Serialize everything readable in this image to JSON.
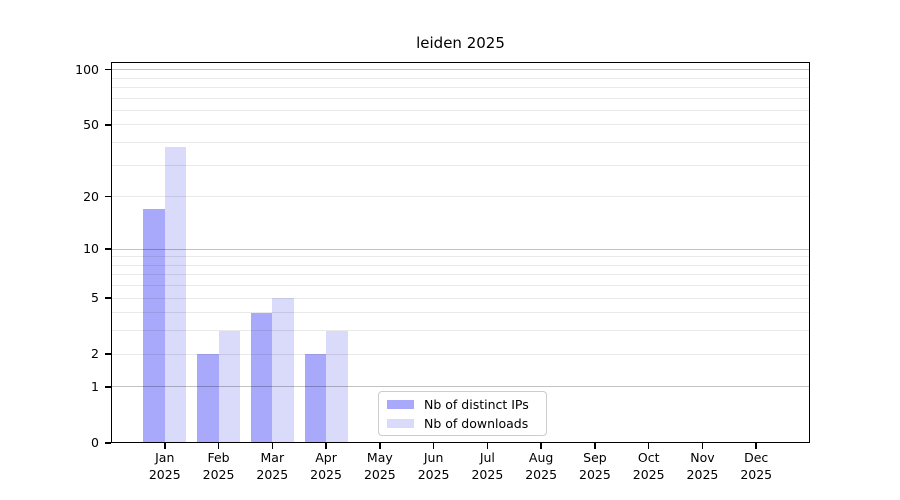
{
  "chart_data": {
    "type": "bar",
    "title": "leiden 2025",
    "categories": [
      "Jan",
      "Feb",
      "Mar",
      "Apr",
      "May",
      "Jun",
      "Jul",
      "Aug",
      "Sep",
      "Oct",
      "Nov",
      "Dec"
    ],
    "category_year": "2025",
    "series": [
      {
        "name": "Nb of distinct IPs",
        "color": "#a9a9fb",
        "values": [
          17,
          2,
          4,
          2,
          0,
          0,
          0,
          0,
          0,
          0,
          0,
          0
        ]
      },
      {
        "name": "Nb of downloads",
        "color": "#dadafb",
        "values": [
          38,
          3,
          5,
          3,
          0,
          0,
          0,
          0,
          0,
          0,
          0,
          0
        ]
      }
    ],
    "xlabel": "",
    "ylabel": "",
    "yscale": "log(value+1)",
    "ylim": [
      0,
      110
    ],
    "yticks": [
      0,
      1,
      2,
      5,
      10,
      20,
      50,
      100
    ],
    "major_gridlines": [
      1,
      10,
      100
    ],
    "minor_gridlines": [
      2,
      3,
      4,
      5,
      6,
      7,
      8,
      9,
      20,
      30,
      40,
      50,
      60,
      70,
      80,
      90
    ],
    "grid": true,
    "legend_position": "lower center inside plot"
  },
  "colors": {
    "background": "#ffffff",
    "text": "#000000",
    "spine": "#000000",
    "major_grid": "rgba(0,0,0,0.24)",
    "minor_grid": "rgba(0,0,0,0.085)",
    "legend_border": "#cccccc"
  }
}
